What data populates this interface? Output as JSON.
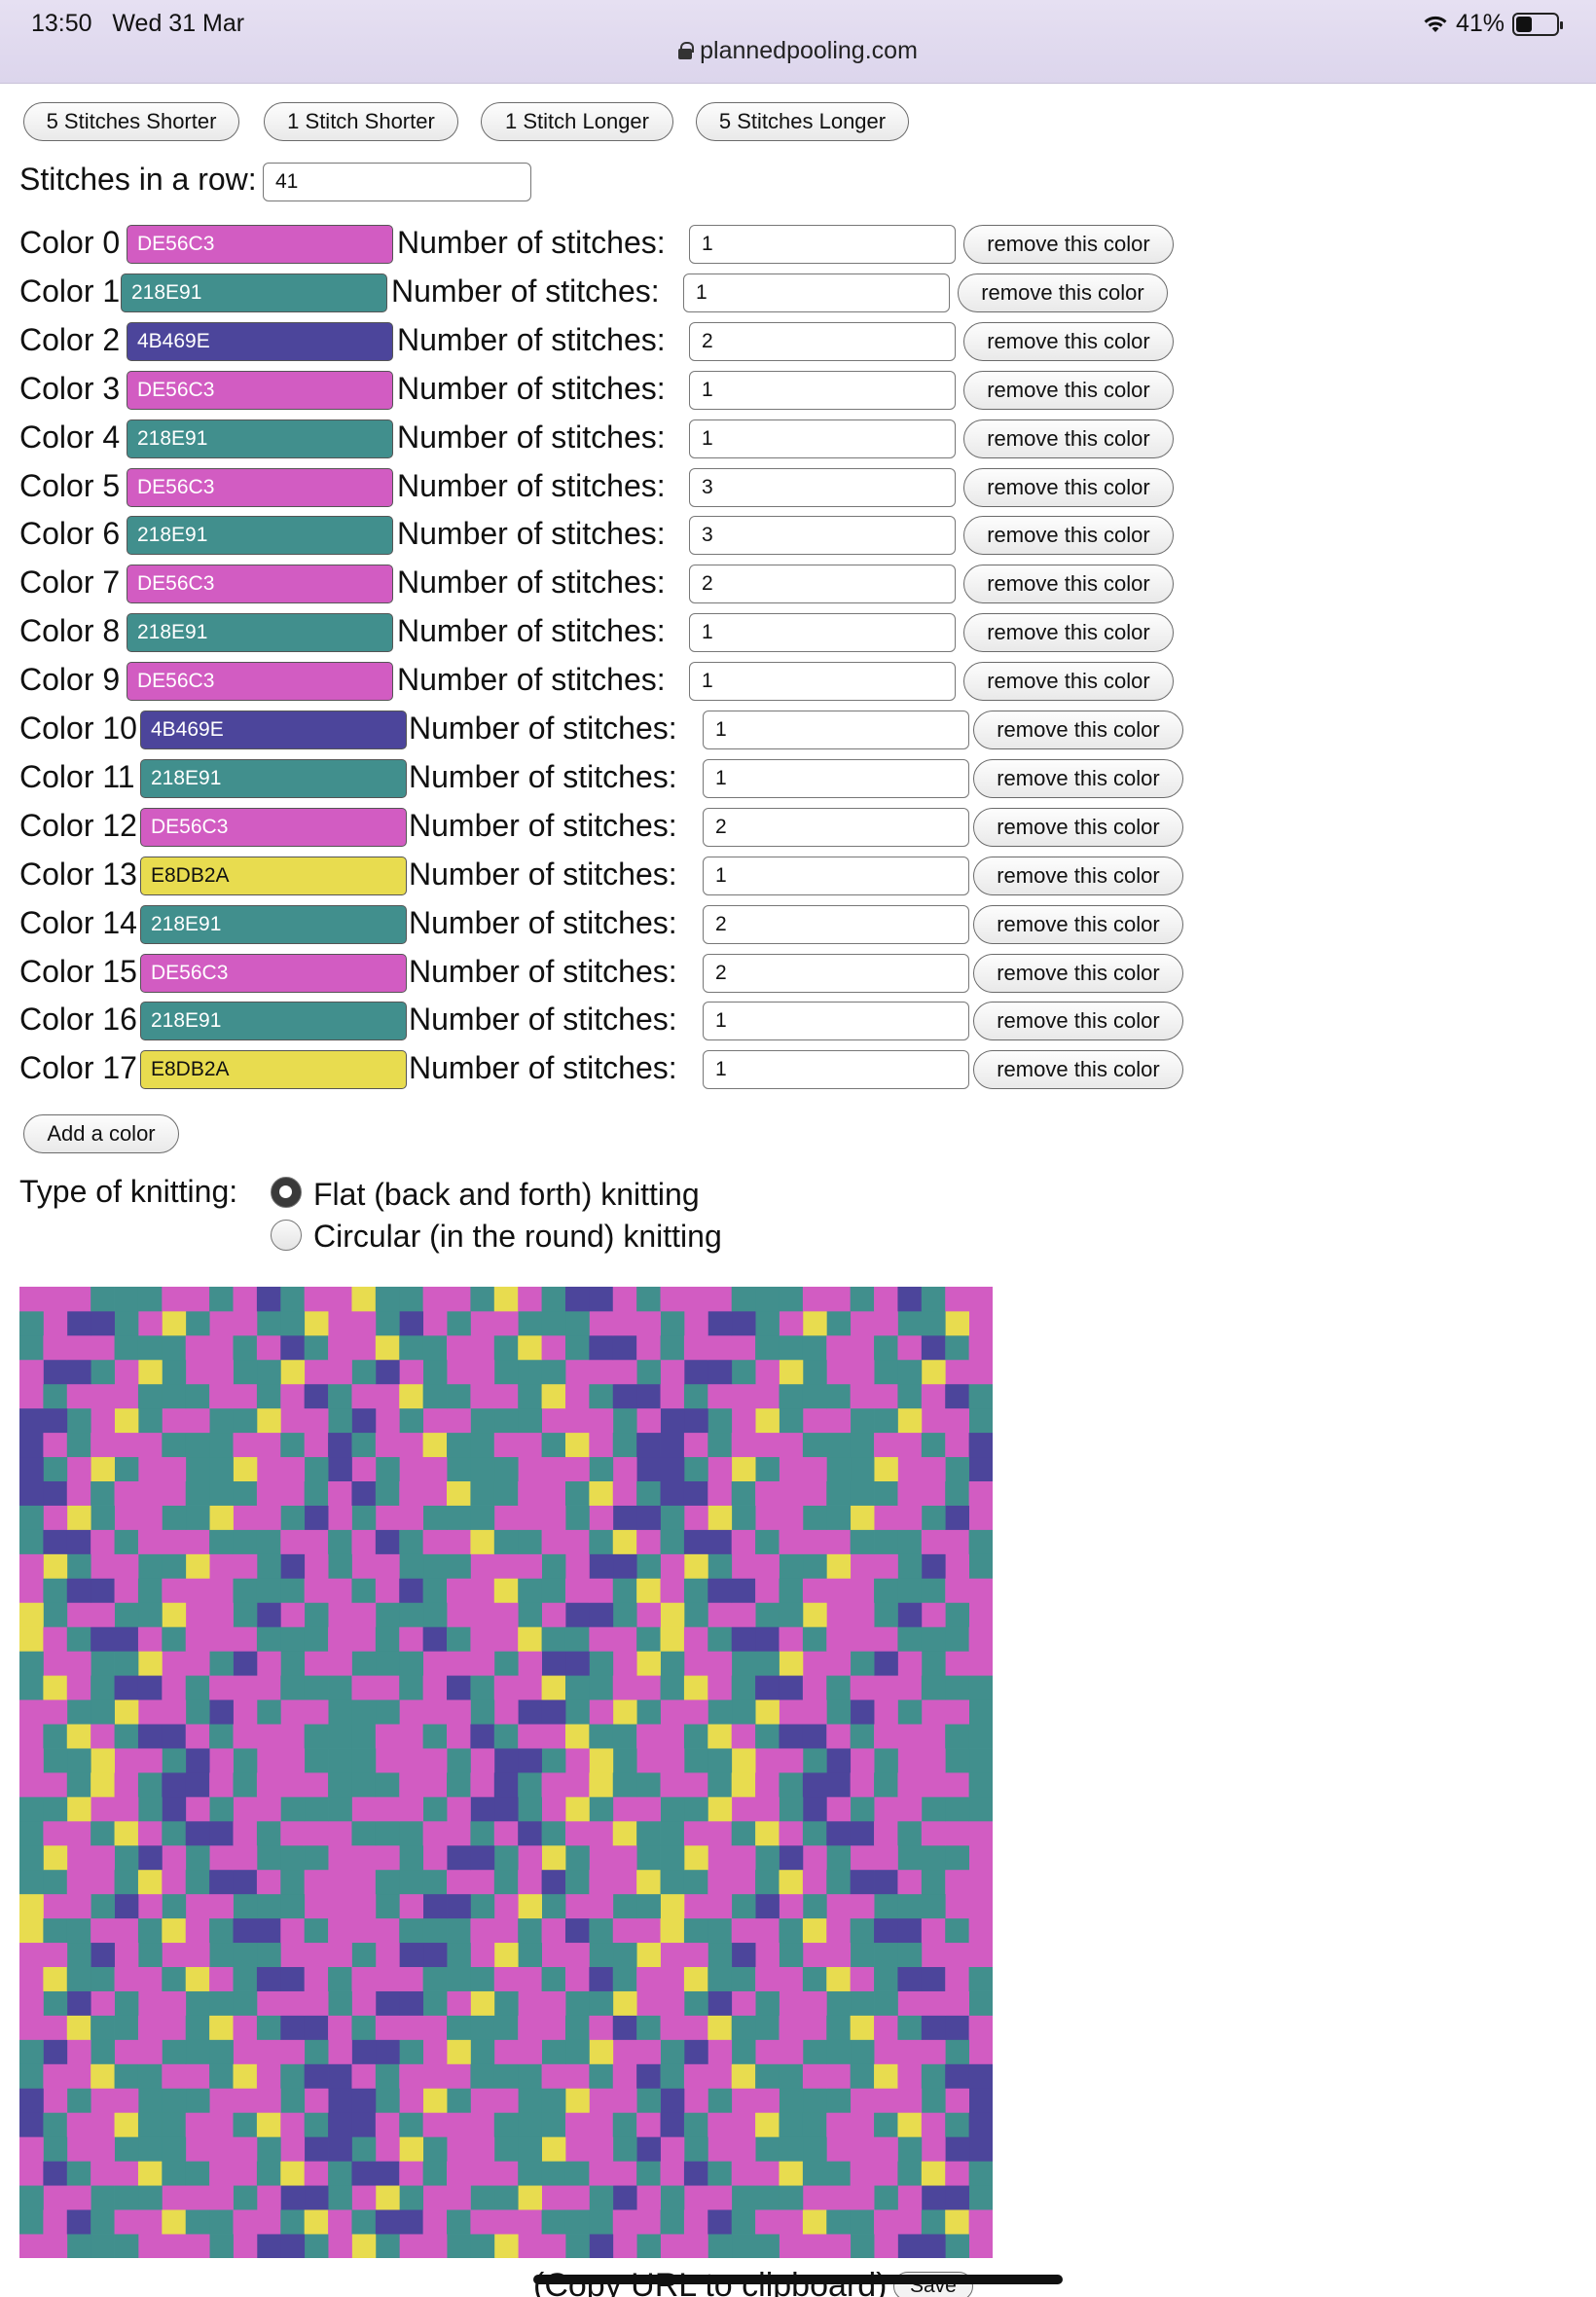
{
  "status_bar": {
    "time": "13:50",
    "date": "Wed 31 Mar",
    "battery": "41%",
    "battery_level": 0.41
  },
  "browser": {
    "url": "plannedpooling.com"
  },
  "length_buttons": [
    {
      "label": "5 Stitches Shorter"
    },
    {
      "label": "1 Stitch Shorter"
    },
    {
      "label": "1 Stitch Longer"
    },
    {
      "label": "5 Stitches Longer"
    }
  ],
  "stitches_in_row": {
    "label": "Stitches in a row:",
    "value": "41"
  },
  "colors": [
    {
      "label": "Color 0",
      "hex": "DE56C3",
      "stitches": "1"
    },
    {
      "label": "Color 1",
      "hex": "218E91",
      "stitches": "1"
    },
    {
      "label": "Color 2",
      "hex": "4B469E",
      "stitches": "2"
    },
    {
      "label": "Color 3",
      "hex": "DE56C3",
      "stitches": "1"
    },
    {
      "label": "Color 4",
      "hex": "218E91",
      "stitches": "1"
    },
    {
      "label": "Color 5",
      "hex": "DE56C3",
      "stitches": "3"
    },
    {
      "label": "Color 6",
      "hex": "218E91",
      "stitches": "3"
    },
    {
      "label": "Color 7",
      "hex": "DE56C3",
      "stitches": "2"
    },
    {
      "label": "Color 8",
      "hex": "218E91",
      "stitches": "1"
    },
    {
      "label": "Color 9",
      "hex": "DE56C3",
      "stitches": "1"
    },
    {
      "label": "Color 10",
      "hex": "4B469E",
      "stitches": "1"
    },
    {
      "label": "Color 11",
      "hex": "218E91",
      "stitches": "1"
    },
    {
      "label": "Color 12",
      "hex": "DE56C3",
      "stitches": "2"
    },
    {
      "label": "Color 13",
      "hex": "E8DB2A",
      "stitches": "1"
    },
    {
      "label": "Color 14",
      "hex": "218E91",
      "stitches": "2"
    },
    {
      "label": "Color 15",
      "hex": "DE56C3",
      "stitches": "2"
    },
    {
      "label": "Color 16",
      "hex": "218E91",
      "stitches": "1"
    },
    {
      "label": "Color 17",
      "hex": "E8DB2A",
      "stitches": "1"
    }
  ],
  "stitches_label": "Number of stitches:",
  "remove_label": "remove this color",
  "add_color_label": "Add a color",
  "knitting_type": {
    "label": "Type of knitting:",
    "options": [
      {
        "label": "Flat (back and forth) knitting",
        "checked": true
      },
      {
        "label": "Circular (in the round) knitting",
        "checked": false
      }
    ]
  },
  "display_colors": {
    "DE56C3": "#d25cc2",
    "218E91": "#418f8d",
    "4B469E": "#4c459b",
    "E8DB2A": "#e8dc4f"
  },
  "footer": {
    "copy_url": "(Copy URL to clipboard)",
    "save": "Save"
  }
}
